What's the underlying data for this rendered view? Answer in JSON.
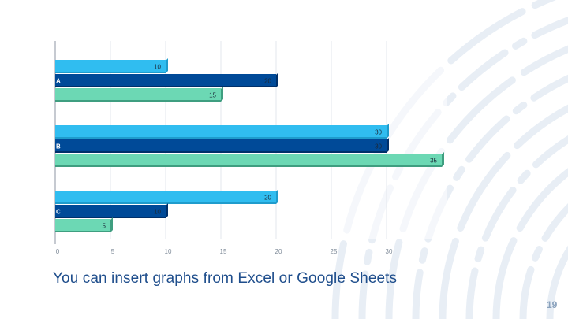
{
  "slide": {
    "caption": "You can insert graphs from Excel or Google Sheets",
    "page_number": "19"
  },
  "colors": {
    "light_blue": "#30bdf0",
    "dark_blue": "#004a98",
    "green": "#6cd8b4",
    "caption": "#1f4e8c",
    "decoration": "#e8eef5"
  },
  "chart_data": {
    "type": "bar",
    "orientation": "horizontal",
    "categories": [
      "A",
      "B",
      "C"
    ],
    "series": [
      {
        "values": [
          10,
          30,
          20
        ]
      },
      {
        "values": [
          20,
          30,
          10
        ]
      },
      {
        "values": [
          15,
          35,
          5
        ]
      }
    ],
    "xlim": [
      0,
      35
    ],
    "xticks": [
      0,
      5,
      10,
      15,
      20,
      25,
      30
    ],
    "grid": true,
    "legend": "none",
    "data_labels": true
  }
}
